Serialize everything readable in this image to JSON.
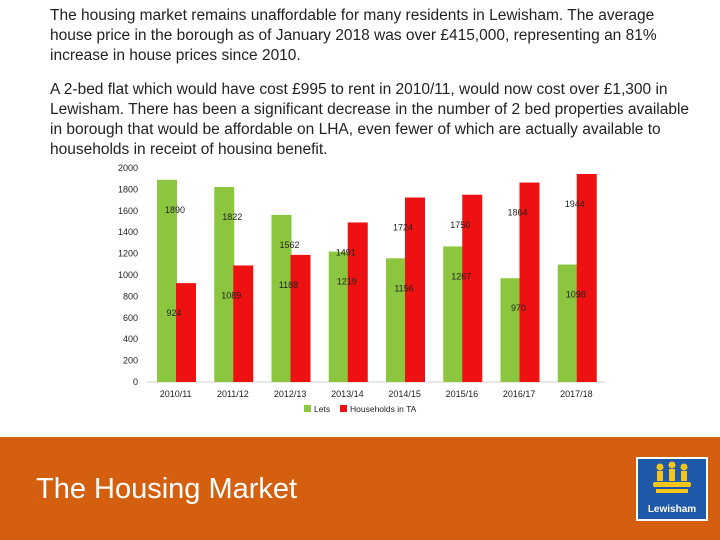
{
  "intro": {
    "paragraph1": "The housing market remains unaffordable for many residents in Lewisham. The average house price in the borough as of January 2018 was over £415,000, representing an 81% increase in house prices since 2010.",
    "paragraph2": "A 2-bed flat which would have cost £995 to rent in 2010/11, would now cost over £1,300 in Lewisham. There has been a significant decrease in the number of 2 bed properties available in borough that would be affordable on LHA, even fewer of which are actually available to households in receipt of housing benefit."
  },
  "chart_data": {
    "type": "bar",
    "title": "",
    "xlabel": "",
    "ylabel": "",
    "ylim": [
      0,
      2000
    ],
    "yticks": [
      0,
      200,
      400,
      600,
      800,
      1000,
      1200,
      1400,
      1600,
      1800,
      2000
    ],
    "grid": false,
    "legend_position": "bottom",
    "categories": [
      "2010/11",
      "2011/12",
      "2012/13",
      "2013/14",
      "2014/15",
      "2015/16",
      "2016/17",
      "2017/18"
    ],
    "series": [
      {
        "name": "Lets",
        "color": "#8cc63f",
        "values": [
          1890,
          1822,
          1562,
          1219,
          1156,
          1267,
          970,
          1098
        ]
      },
      {
        "name": "Households in TA",
        "color": "#ee1111",
        "values": [
          924,
          1089,
          1188,
          1491,
          1724,
          1750,
          1864,
          1944
        ]
      }
    ],
    "value_labels": [
      [
        "1890",
        "1822",
        "1562",
        "1219",
        "1156",
        "1267",
        "970",
        "1098"
      ],
      [
        "924",
        "1089",
        "1188",
        "1491",
        "1724",
        "1750",
        "1864",
        "1944"
      ]
    ]
  },
  "footer": {
    "title": "The Housing Market",
    "logo_text": "Lewisham",
    "background": "#d4600f"
  }
}
